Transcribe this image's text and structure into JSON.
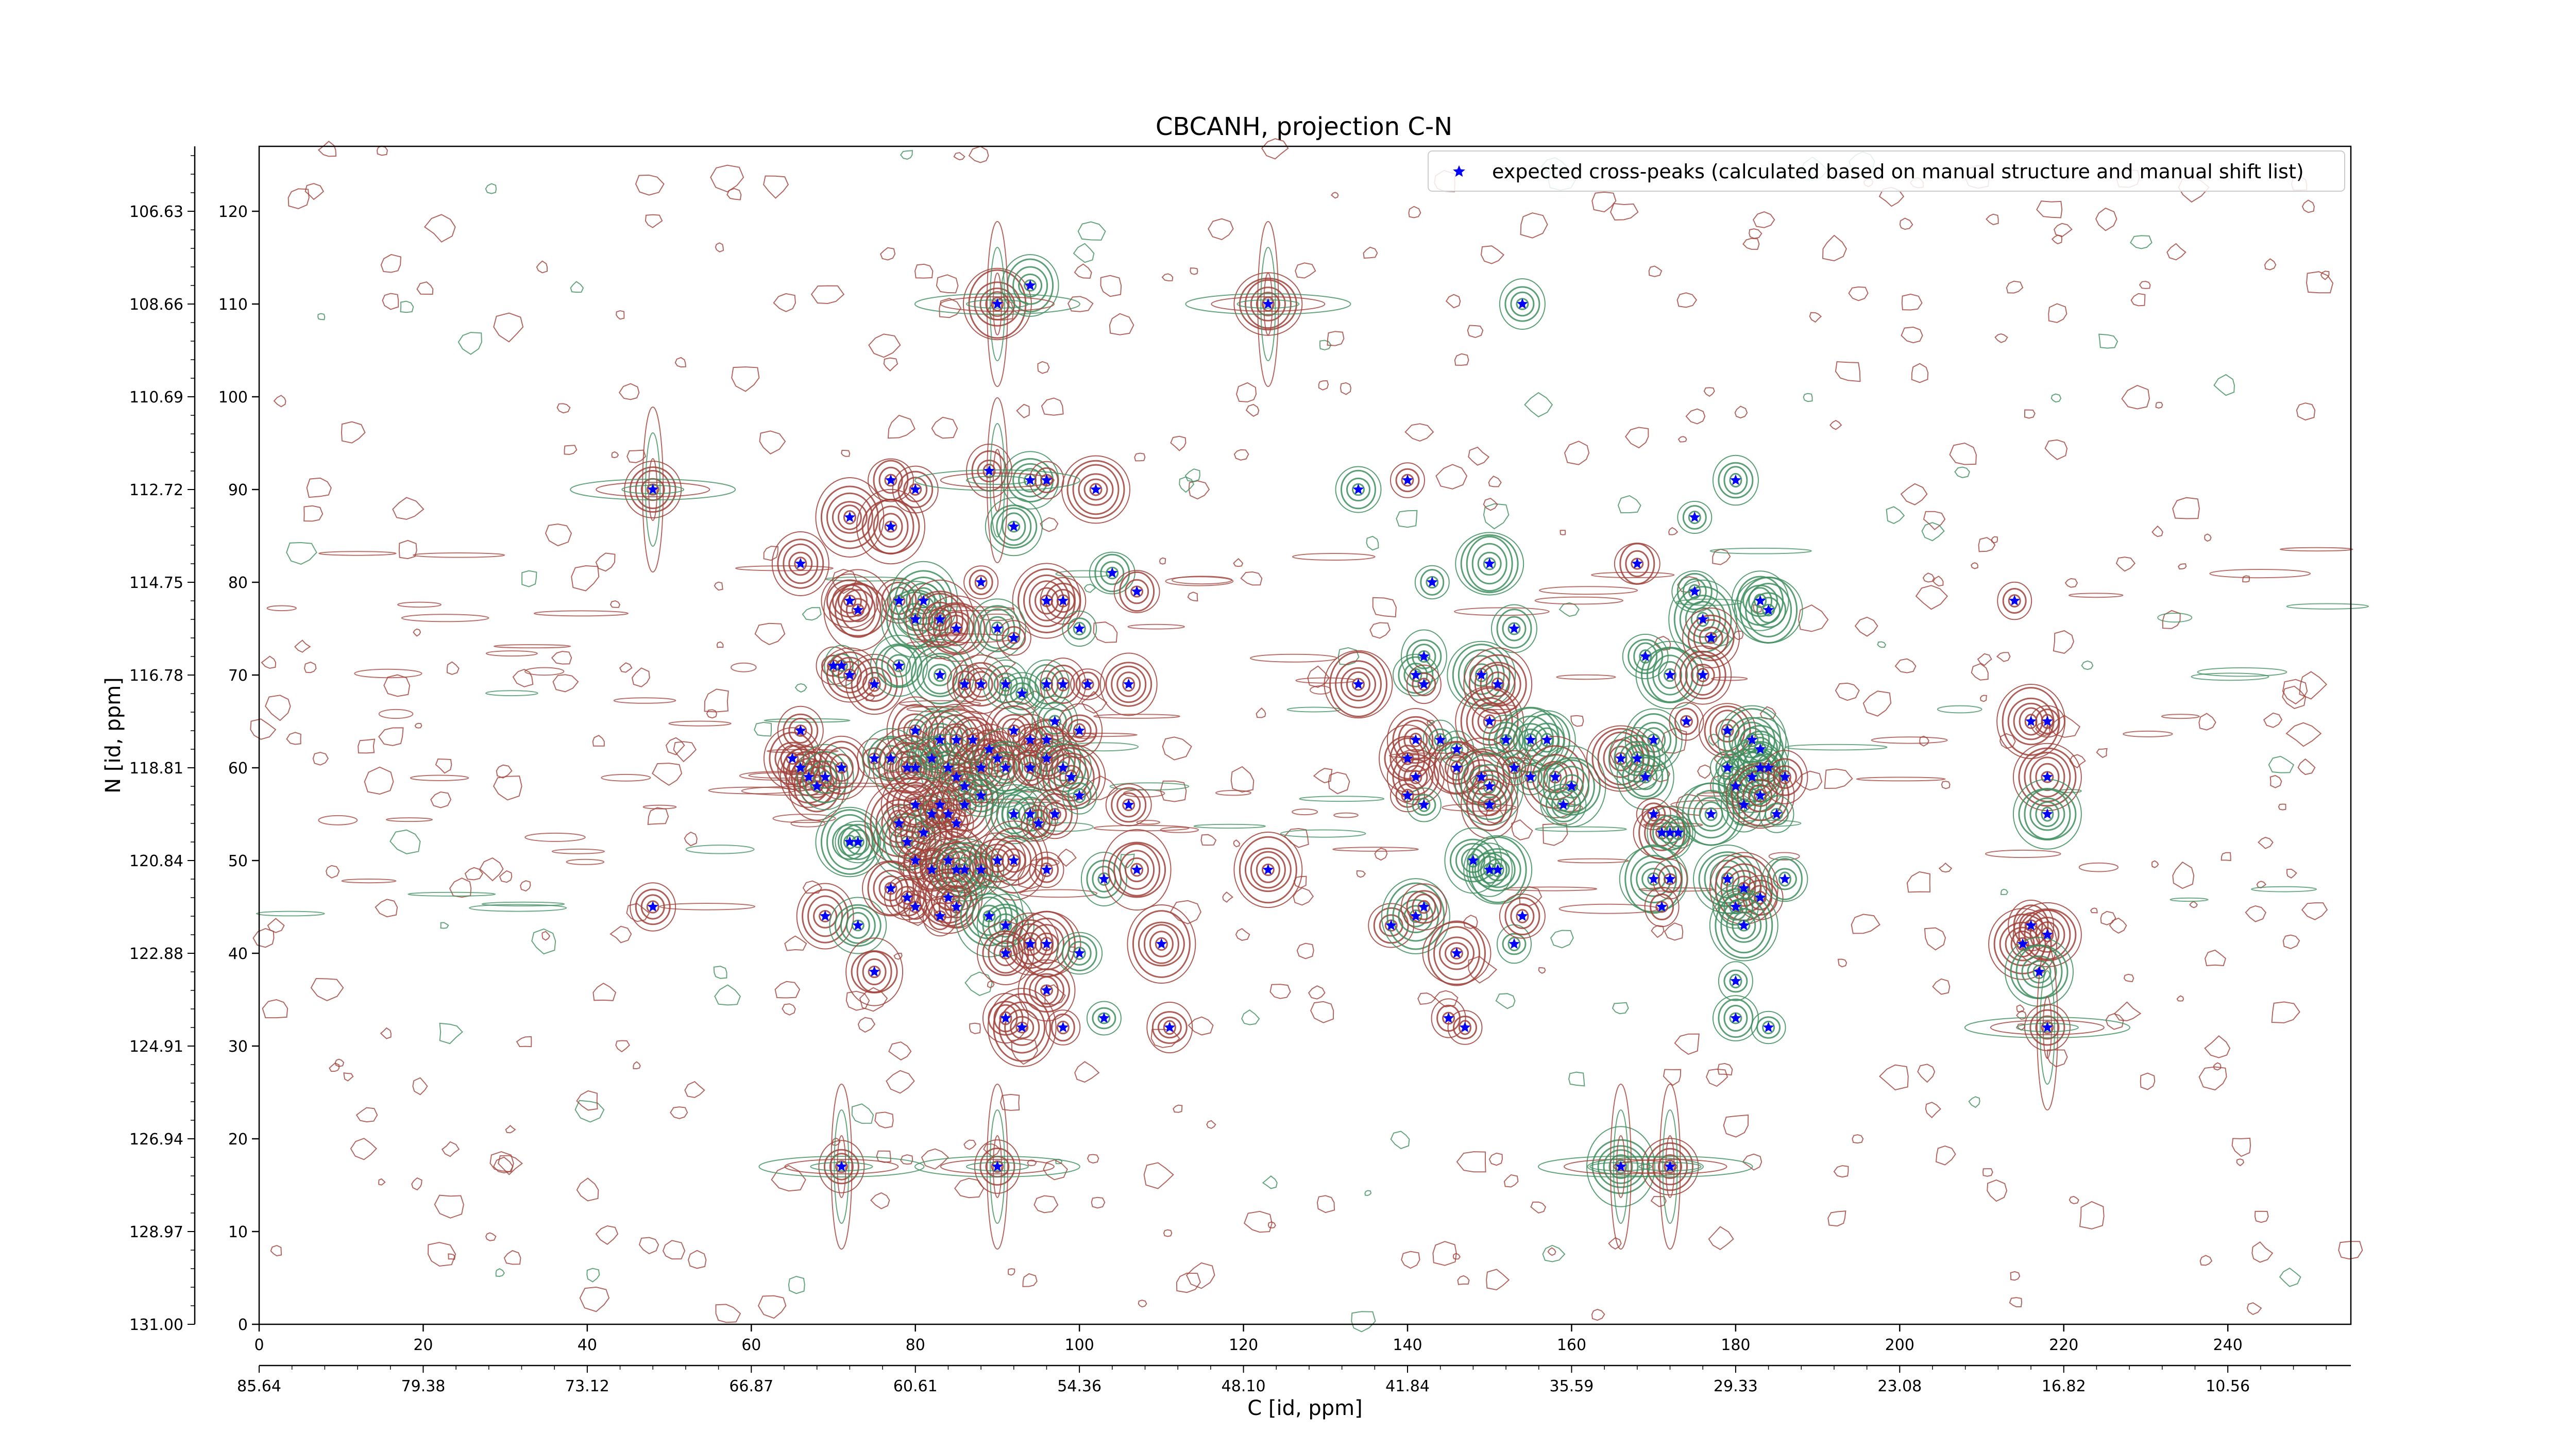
{
  "chart_data": {
    "type": "scatter",
    "title": "CBCANH, projection C-N",
    "xlabel": "C [id, ppm]",
    "ylabel": "N [id, ppm]",
    "x_index_ticks": [
      "0",
      "20",
      "40",
      "60",
      "80",
      "100",
      "120",
      "140",
      "160",
      "180",
      "200",
      "220",
      "240"
    ],
    "x_ppm_ticks": [
      "85.64",
      "79.38",
      "73.12",
      "66.87",
      "60.61",
      "54.36",
      "48.10",
      "41.84",
      "35.59",
      "29.33",
      "23.08",
      "16.82",
      "10.56"
    ],
    "y_index_ticks": [
      "0",
      "10",
      "20",
      "30",
      "40",
      "50",
      "60",
      "70",
      "80",
      "90",
      "100",
      "110",
      "120"
    ],
    "y_ppm_ticks": [
      "131.00",
      "128.97",
      "126.94",
      "124.91",
      "122.88",
      "120.84",
      "118.81",
      "116.78",
      "114.75",
      "112.72",
      "110.69",
      "108.66",
      "106.63"
    ],
    "xlim": [
      0,
      255
    ],
    "ylim": [
      0,
      127
    ],
    "grid": false,
    "legend_position": "top-right",
    "series": [
      {
        "name": "expected cross-peaks (calculated based on manual structure and manual shift list)",
        "color": "#0000ff",
        "marker": "star",
        "points": [
          [
            90,
            110
          ],
          [
            94,
            112
          ],
          [
            123,
            110
          ],
          [
            154,
            110
          ],
          [
            48,
            90
          ],
          [
            77,
            91
          ],
          [
            94,
            91
          ],
          [
            96,
            91
          ],
          [
            102,
            90
          ],
          [
            134,
            90
          ],
          [
            140,
            91
          ],
          [
            175,
            87
          ],
          [
            180,
            91
          ],
          [
            66,
            82
          ],
          [
            72,
            87
          ],
          [
            77,
            86
          ],
          [
            80,
            90
          ],
          [
            89,
            92
          ],
          [
            92,
            86
          ],
          [
            88,
            80
          ],
          [
            96,
            78
          ],
          [
            98,
            78
          ],
          [
            104,
            81
          ],
          [
            107,
            79
          ],
          [
            143,
            80
          ],
          [
            150,
            82
          ],
          [
            168,
            82
          ],
          [
            175,
            79
          ],
          [
            183,
            78
          ],
          [
            184,
            77
          ],
          [
            214,
            78
          ],
          [
            72,
            78
          ],
          [
            73,
            77
          ],
          [
            78,
            78
          ],
          [
            81,
            78
          ],
          [
            80,
            76
          ],
          [
            83,
            76
          ],
          [
            85,
            75
          ],
          [
            90,
            75
          ],
          [
            92,
            74
          ],
          [
            100,
            75
          ],
          [
            176,
            76
          ],
          [
            177,
            74
          ],
          [
            153,
            75
          ],
          [
            142,
            72
          ],
          [
            70,
            71
          ],
          [
            71,
            71
          ],
          [
            72,
            70
          ],
          [
            75,
            69
          ],
          [
            78,
            71
          ],
          [
            83,
            70
          ],
          [
            86,
            69
          ],
          [
            88,
            69
          ],
          [
            91,
            69
          ],
          [
            93,
            68
          ],
          [
            96,
            69
          ],
          [
            98,
            69
          ],
          [
            101,
            69
          ],
          [
            106,
            69
          ],
          [
            134,
            69
          ],
          [
            141,
            70
          ],
          [
            142,
            69
          ],
          [
            149,
            70
          ],
          [
            151,
            69
          ],
          [
            169,
            72
          ],
          [
            172,
            70
          ],
          [
            176,
            70
          ],
          [
            66,
            64
          ],
          [
            80,
            64
          ],
          [
            83,
            63
          ],
          [
            85,
            63
          ],
          [
            87,
            63
          ],
          [
            89,
            62
          ],
          [
            92,
            64
          ],
          [
            94,
            63
          ],
          [
            96,
            63
          ],
          [
            97,
            65
          ],
          [
            100,
            64
          ],
          [
            141,
            63
          ],
          [
            144,
            63
          ],
          [
            146,
            62
          ],
          [
            150,
            65
          ],
          [
            152,
            63
          ],
          [
            155,
            63
          ],
          [
            157,
            63
          ],
          [
            170,
            63
          ],
          [
            174,
            65
          ],
          [
            179,
            64
          ],
          [
            182,
            63
          ],
          [
            183,
            62
          ],
          [
            216,
            65
          ],
          [
            218,
            65
          ],
          [
            65,
            61
          ],
          [
            66,
            60
          ],
          [
            67,
            59
          ],
          [
            68,
            58
          ],
          [
            69,
            59
          ],
          [
            71,
            60
          ],
          [
            75,
            61
          ],
          [
            77,
            61
          ],
          [
            79,
            60
          ],
          [
            80,
            60
          ],
          [
            82,
            61
          ],
          [
            84,
            60
          ],
          [
            85,
            59
          ],
          [
            86,
            58
          ],
          [
            88,
            60
          ],
          [
            90,
            61
          ],
          [
            91,
            60
          ],
          [
            94,
            60
          ],
          [
            96,
            61
          ],
          [
            98,
            60
          ],
          [
            99,
            59
          ],
          [
            140,
            61
          ],
          [
            141,
            59
          ],
          [
            146,
            60
          ],
          [
            149,
            59
          ],
          [
            150,
            58
          ],
          [
            153,
            60
          ],
          [
            155,
            59
          ],
          [
            158,
            59
          ],
          [
            160,
            58
          ],
          [
            166,
            61
          ],
          [
            168,
            61
          ],
          [
            169,
            59
          ],
          [
            179,
            60
          ],
          [
            180,
            58
          ],
          [
            182,
            59
          ],
          [
            183,
            60
          ],
          [
            184,
            60
          ],
          [
            186,
            59
          ],
          [
            218,
            59
          ],
          [
            72,
            52
          ],
          [
            73,
            52
          ],
          [
            78,
            54
          ],
          [
            79,
            52
          ],
          [
            80,
            56
          ],
          [
            81,
            53
          ],
          [
            82,
            55
          ],
          [
            83,
            56
          ],
          [
            84,
            55
          ],
          [
            85,
            54
          ],
          [
            86,
            56
          ],
          [
            88,
            57
          ],
          [
            92,
            55
          ],
          [
            94,
            55
          ],
          [
            95,
            54
          ],
          [
            97,
            55
          ],
          [
            100,
            57
          ],
          [
            106,
            56
          ],
          [
            140,
            57
          ],
          [
            142,
            56
          ],
          [
            150,
            56
          ],
          [
            159,
            56
          ],
          [
            170,
            55
          ],
          [
            171,
            53
          ],
          [
            172,
            53
          ],
          [
            173,
            53
          ],
          [
            177,
            55
          ],
          [
            181,
            56
          ],
          [
            183,
            57
          ],
          [
            185,
            55
          ],
          [
            218,
            55
          ],
          [
            80,
            50
          ],
          [
            82,
            49
          ],
          [
            84,
            50
          ],
          [
            85,
            49
          ],
          [
            86,
            49
          ],
          [
            88,
            49
          ],
          [
            90,
            50
          ],
          [
            92,
            50
          ],
          [
            96,
            49
          ],
          [
            103,
            48
          ],
          [
            107,
            49
          ],
          [
            123,
            49
          ],
          [
            148,
            50
          ],
          [
            150,
            49
          ],
          [
            151,
            49
          ],
          [
            170,
            48
          ],
          [
            179,
            48
          ],
          [
            181,
            47
          ],
          [
            183,
            46
          ],
          [
            186,
            48
          ],
          [
            48,
            45
          ],
          [
            69,
            44
          ],
          [
            73,
            43
          ],
          [
            77,
            47
          ],
          [
            79,
            46
          ],
          [
            80,
            45
          ],
          [
            83,
            44
          ],
          [
            84,
            46
          ],
          [
            85,
            45
          ],
          [
            89,
            44
          ],
          [
            91,
            43
          ],
          [
            91,
            40
          ],
          [
            94,
            41
          ],
          [
            96,
            41
          ],
          [
            100,
            40
          ],
          [
            110,
            41
          ],
          [
            138,
            43
          ],
          [
            141,
            44
          ],
          [
            142,
            45
          ],
          [
            146,
            40
          ],
          [
            153,
            41
          ],
          [
            154,
            44
          ],
          [
            171,
            45
          ],
          [
            172,
            48
          ],
          [
            180,
            45
          ],
          [
            181,
            43
          ],
          [
            216,
            43
          ],
          [
            215,
            41
          ],
          [
            218,
            42
          ],
          [
            75,
            38
          ],
          [
            91,
            33
          ],
          [
            93,
            32
          ],
          [
            96,
            36
          ],
          [
            98,
            32
          ],
          [
            103,
            33
          ],
          [
            111,
            32
          ],
          [
            145,
            33
          ],
          [
            147,
            32
          ],
          [
            180,
            37
          ],
          [
            180,
            33
          ],
          [
            184,
            32
          ],
          [
            217,
            38
          ],
          [
            218,
            32
          ],
          [
            71,
            17
          ],
          [
            90,
            17
          ],
          [
            166,
            17
          ],
          [
            172,
            17
          ]
        ]
      }
    ],
    "contour_colors": {
      "positive": "#a0413a",
      "negative": "#3e8e5e"
    }
  }
}
